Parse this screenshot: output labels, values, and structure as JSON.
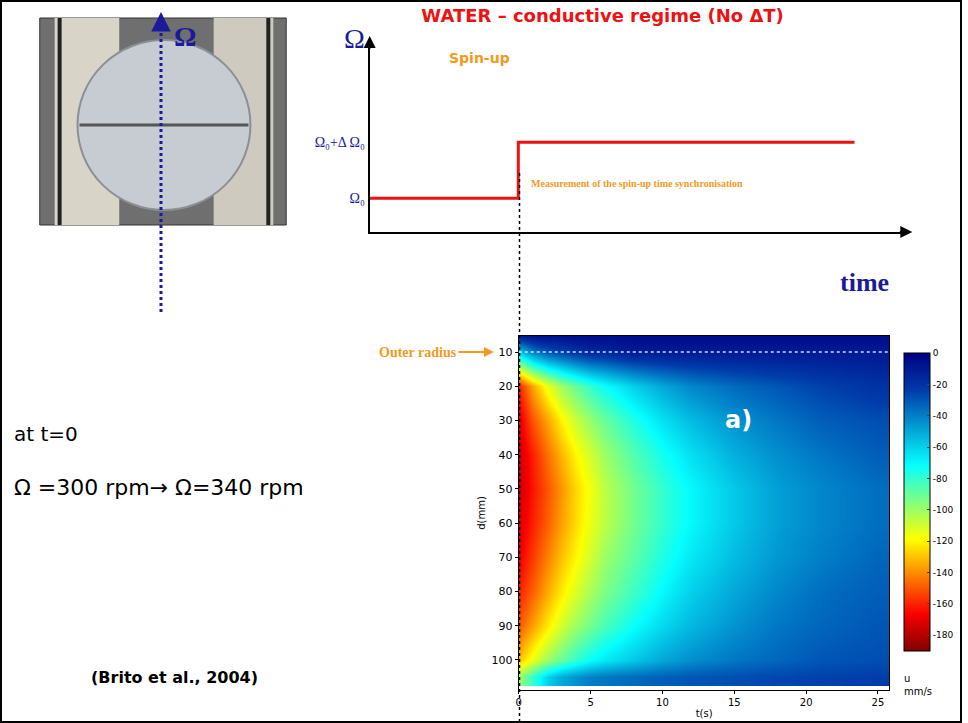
{
  "chart_data": [
    {
      "type": "step",
      "title": "WATER – conductive regime (No ΔT)",
      "xlabel": "time",
      "ylabel": "Ω",
      "annotations": [
        "Spin-up",
        "Measurement of the spin-up time synchronisation"
      ],
      "x": [
        -10.3,
        0,
        23.3
      ],
      "values": [
        300,
        340,
        340
      ],
      "color": "#ee1111",
      "line_style": "solid",
      "xlim": [
        -10.3,
        27.1
      ],
      "ylim": [
        276,
        413
      ],
      "yticks": [
        {
          "value": 300,
          "label": "Ω₀"
        },
        {
          "value": 340,
          "label": "Ω₀+Δ Ω₀"
        }
      ],
      "tick_labels": "y",
      "grid": false
    },
    {
      "type": "heatmap",
      "xlabel": "t(s)",
      "ylabel": "d(mm)",
      "x": [
        0,
        1,
        2,
        3,
        4,
        5,
        6,
        8,
        10,
        12,
        15,
        18,
        21,
        25
      ],
      "y": [
        5,
        10,
        20,
        30,
        40,
        50,
        60,
        70,
        80,
        90,
        100,
        105
      ],
      "cells": [
        [
          -10,
          -5,
          -5,
          -5,
          -5,
          -5,
          -5,
          -5,
          -5,
          -5,
          -5,
          -5,
          -5,
          -5
        ],
        [
          -60,
          -40,
          -30,
          -25,
          -20,
          -15,
          -15,
          -10,
          -10,
          -10,
          -10,
          -10,
          -10,
          -10
        ],
        [
          -160,
          -135,
          -115,
          -100,
          -90,
          -80,
          -72,
          -60,
          -50,
          -42,
          -35,
          -30,
          -25,
          -20
        ],
        [
          -170,
          -150,
          -135,
          -120,
          -108,
          -98,
          -90,
          -76,
          -64,
          -55,
          -45,
          -38,
          -32,
          -28
        ],
        [
          -175,
          -160,
          -145,
          -132,
          -120,
          -110,
          -100,
          -86,
          -74,
          -64,
          -52,
          -44,
          -38,
          -32
        ],
        [
          -175,
          -162,
          -150,
          -138,
          -126,
          -116,
          -106,
          -92,
          -80,
          -70,
          -58,
          -48,
          -42,
          -36
        ],
        [
          -172,
          -160,
          -148,
          -136,
          -125,
          -115,
          -106,
          -92,
          -80,
          -70,
          -58,
          -48,
          -42,
          -36
        ],
        [
          -168,
          -155,
          -142,
          -130,
          -120,
          -110,
          -100,
          -88,
          -76,
          -66,
          -55,
          -46,
          -40,
          -34
        ],
        [
          -160,
          -148,
          -134,
          -122,
          -112,
          -102,
          -94,
          -82,
          -70,
          -60,
          -50,
          -42,
          -36,
          -32
        ],
        [
          -150,
          -136,
          -122,
          -110,
          -100,
          -92,
          -84,
          -72,
          -62,
          -54,
          -45,
          -38,
          -34,
          -30
        ],
        [
          -130,
          -115,
          -100,
          -90,
          -80,
          -72,
          -66,
          -58,
          -50,
          -44,
          -38,
          -34,
          -30,
          -28
        ],
        [
          -100,
          -80,
          -60,
          -50,
          -45,
          -40,
          -38,
          -35,
          -32,
          -30,
          -28,
          -26,
          -25,
          -24
        ]
      ],
      "xlim": [
        0,
        25.8
      ],
      "xticks": [
        0,
        5,
        10,
        15,
        20,
        25
      ],
      "ylim": [
        108.8,
        5.3
      ],
      "yticks": [
        10,
        20,
        30,
        40,
        50,
        60,
        70,
        80,
        90,
        100
      ],
      "color_range": [
        -190,
        0
      ],
      "color_ticks": [
        0,
        -20,
        -40,
        -60,
        -80,
        -100,
        -120,
        -140,
        -160,
        -180
      ],
      "colorbar_title": [
        "u",
        "mm/s"
      ],
      "annotations": [
        {
          "text": "a)",
          "t": 15.3,
          "d": 30
        },
        {
          "text": "Outer radius",
          "d": 10
        }
      ],
      "grid": false
    }
  ],
  "slide": {
    "rotation_label": "Ω",
    "texts": [
      "at t=0",
      "Ω =300 rpm→ Ω=340 rpm",
      "(Brito et al., 2004)"
    ]
  }
}
